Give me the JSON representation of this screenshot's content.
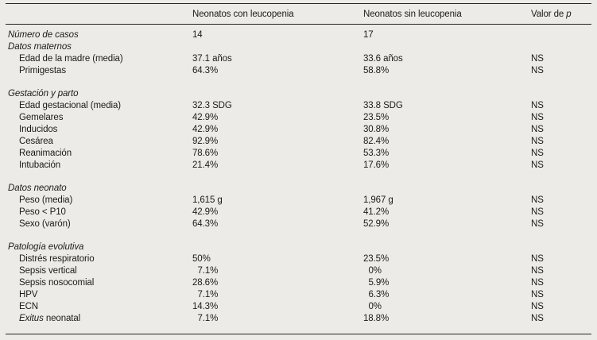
{
  "page": {
    "background_color": "#ecebe7",
    "text_color": "#1b1b1b",
    "rule_color": "#252525"
  },
  "table": {
    "header": {
      "col_blank": "",
      "col_group1": "Neonatos con leucopenia",
      "col_group2": "Neonatos sin leucopenia",
      "col_p_prefix": "Valor de ",
      "col_p_var": "p"
    },
    "rows": [
      {
        "type": "top",
        "label": "Número de casos",
        "v1": "14",
        "v2": "17",
        "p": ""
      },
      {
        "type": "section",
        "label": "Datos maternos"
      },
      {
        "type": "data",
        "label": "Edad de la madre (media)",
        "v1": "37.1 años",
        "v2": "33.6 años",
        "p": "NS"
      },
      {
        "type": "data",
        "label": "Primigestas",
        "v1": "64.3%",
        "v2": "58.8%",
        "p": "NS"
      },
      {
        "type": "section",
        "label": "Gestación y parto"
      },
      {
        "type": "data",
        "label": "Edad gestacional (media)",
        "v1": "32.3 SDG",
        "v2": "33.8 SDG",
        "p": "NS"
      },
      {
        "type": "data",
        "label": "Gemelares",
        "v1": "42.9%",
        "v2": "23.5%",
        "p": "NS"
      },
      {
        "type": "data",
        "label": "Inducidos",
        "v1": "42.9%",
        "v2": "30.8%",
        "p": "NS"
      },
      {
        "type": "data",
        "label": "Cesárea",
        "v1": "92.9%",
        "v2": "82.4%",
        "p": "NS"
      },
      {
        "type": "data",
        "label": "Reanimación",
        "v1": "78.6%",
        "v2": "53.3%",
        "p": "NS"
      },
      {
        "type": "data",
        "label": "Intubación",
        "v1": "21.4%",
        "v2": "17.6%",
        "p": "NS"
      },
      {
        "type": "section",
        "label": "Datos neonato"
      },
      {
        "type": "data",
        "label": "Peso (media)",
        "v1": "1,615 g",
        "v2": "1,967 g",
        "p": "NS"
      },
      {
        "type": "data",
        "label": "Peso < P10",
        "v1": "42.9%",
        "v2": "41.2%",
        "p": "NS"
      },
      {
        "type": "data",
        "label": "Sexo (varón)",
        "v1": "64.3%",
        "v2": "52.9%",
        "p": "NS"
      },
      {
        "type": "section",
        "label": "Patología evolutiva"
      },
      {
        "type": "data",
        "label": "Distrés respiratorio",
        "v1": "50%",
        "v2": "23.5%",
        "p": "NS"
      },
      {
        "type": "data",
        "label": "Sepsis vertical",
        "v1": "7.1%",
        "v2": "0%",
        "p": "NS"
      },
      {
        "type": "data",
        "label": "Sepsis nosocomial",
        "v1": "28.6%",
        "v2": "5.9%",
        "p": "NS"
      },
      {
        "type": "data",
        "label": "HPV",
        "v1": "7.1%",
        "v2": "6.3%",
        "p": "NS"
      },
      {
        "type": "data",
        "label": "ECN",
        "v1": "14.3%",
        "v2": "0%",
        "p": "NS"
      },
      {
        "type": "data",
        "label_italic": "Exitus",
        "label_rest": " neonatal",
        "v1": "7.1%",
        "v2": "18.8%",
        "p": "NS"
      }
    ]
  }
}
